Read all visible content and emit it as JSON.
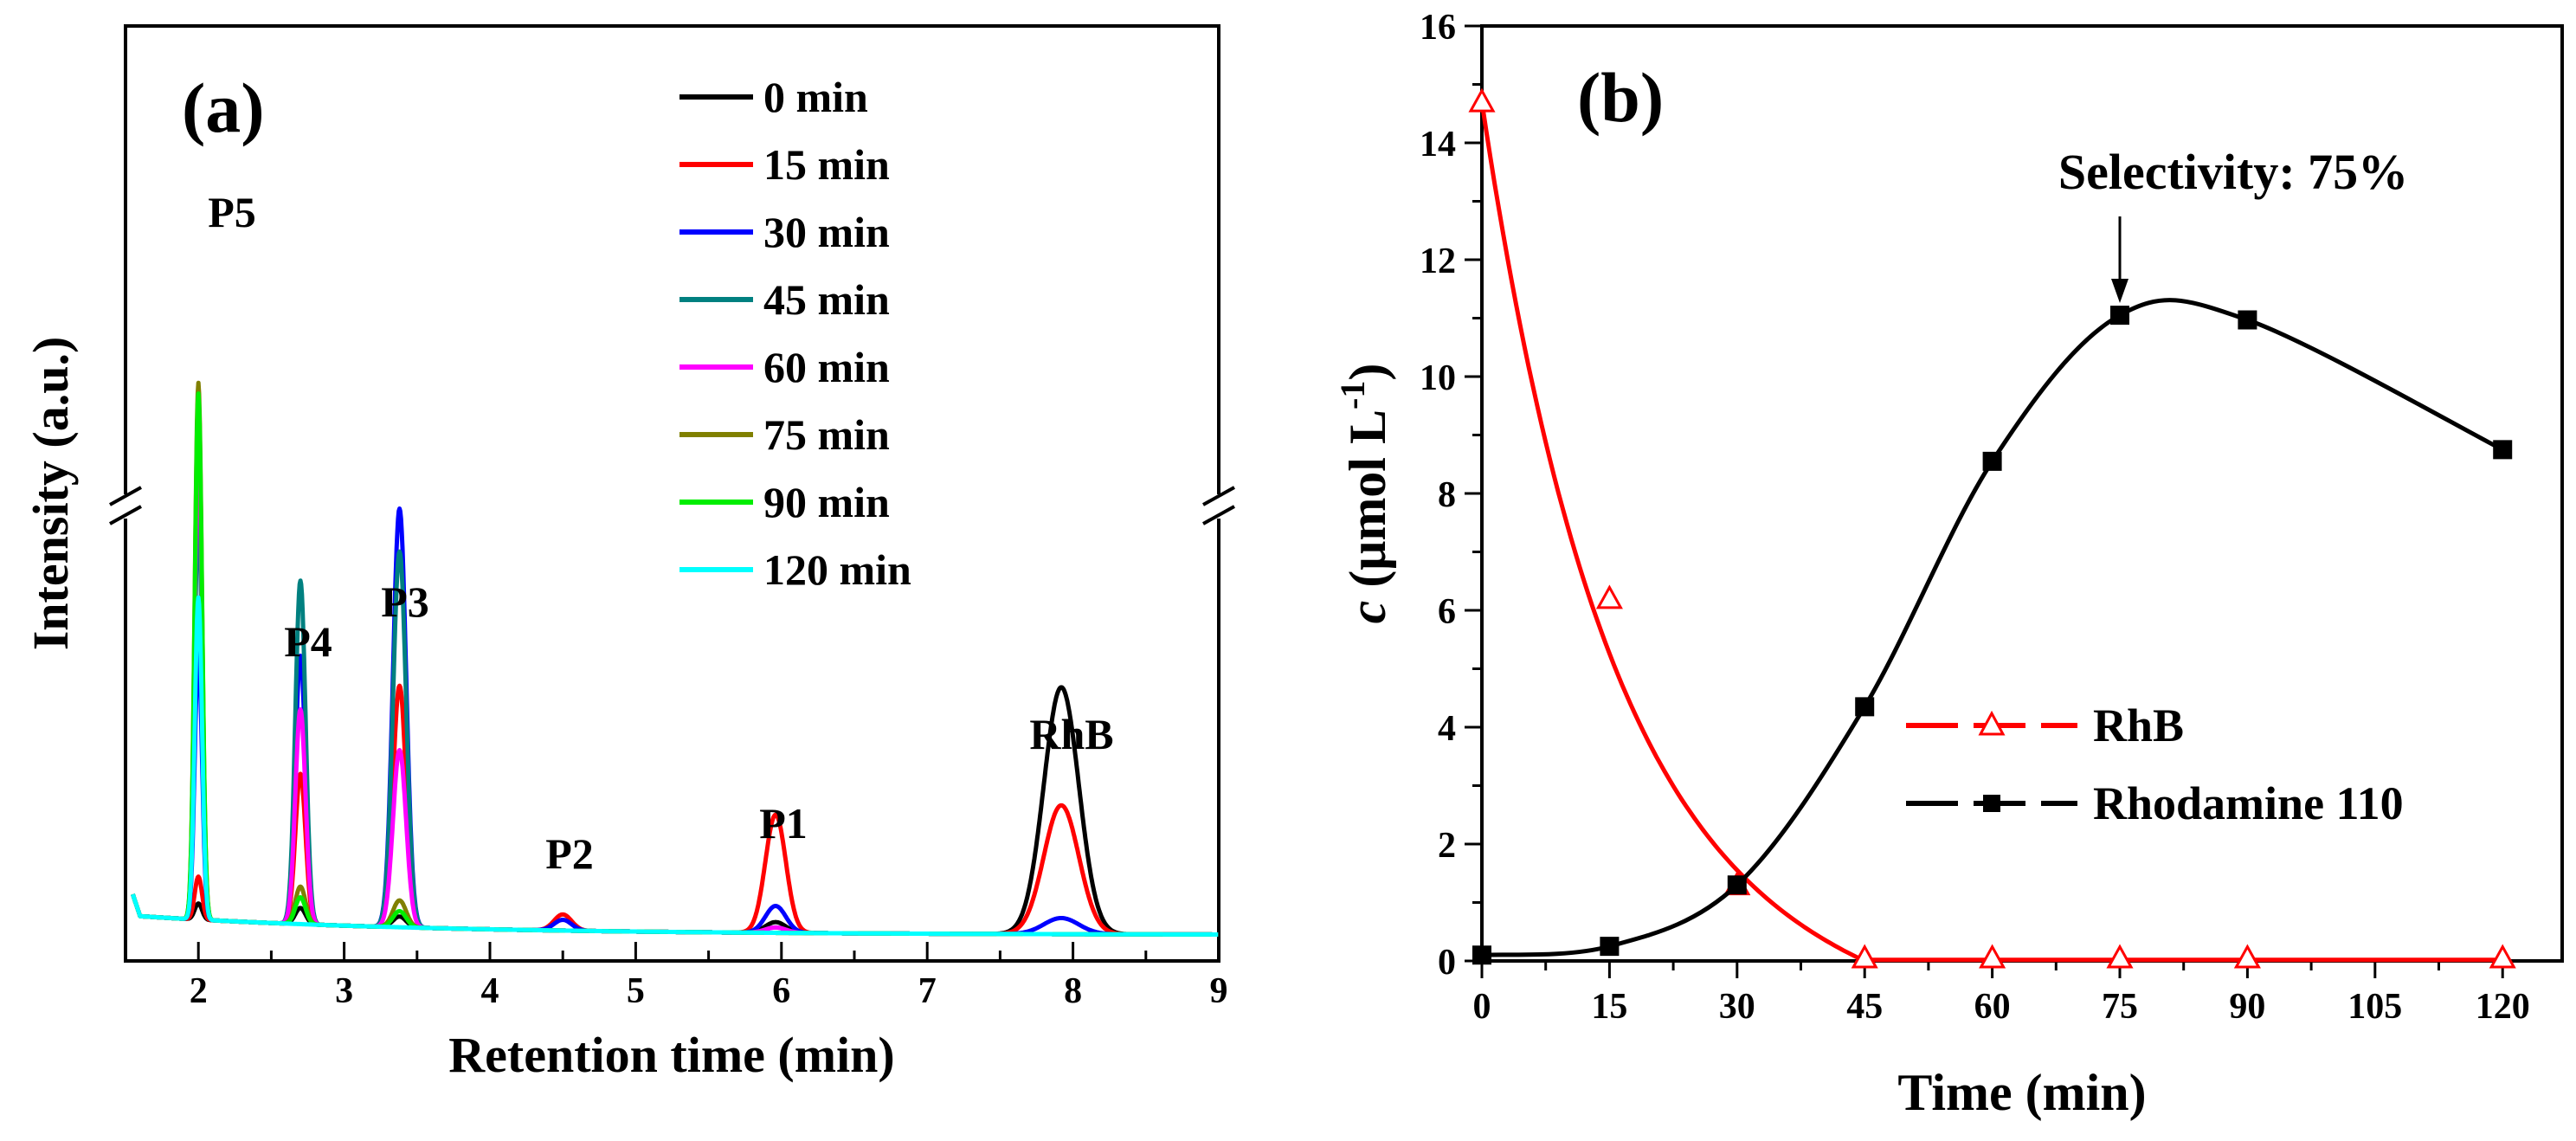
{
  "chart_data": [
    {
      "panel": "(a)",
      "type": "line",
      "xlabel": "Retention time (min)",
      "ylabel": "Intensity (a.u.)",
      "xlim": [
        1.5,
        9
      ],
      "xticks": [
        "2",
        "3",
        "4",
        "5",
        "6",
        "7",
        "8",
        "9"
      ],
      "ylim": [
        0,
        100
      ],
      "axis_break": true,
      "legend_position": "top-center",
      "peak_labels": [
        "P5",
        "P4",
        "P3",
        "P2",
        "P1",
        "RhB"
      ],
      "series": [
        {
          "name": "0 min",
          "color": "#000000",
          "peaks": {
            "P5": 3,
            "P4": 3,
            "P3": 2,
            "P2": 0,
            "P1": 2,
            "RhB": 46
          }
        },
        {
          "name": "15 min",
          "color": "#ff0000",
          "peaks": {
            "P5": 8,
            "P4": 28,
            "P3": 45,
            "P2": 3,
            "P1": 22,
            "RhB": 24
          }
        },
        {
          "name": "30 min",
          "color": "#0000ff",
          "peaks": {
            "P5": 50,
            "P4": 50,
            "P3": 78,
            "P2": 2,
            "P1": 5,
            "RhB": 3
          }
        },
        {
          "name": "45 min",
          "color": "#008080",
          "peaks": {
            "P5": 78,
            "P4": 64,
            "P3": 70,
            "P2": 0,
            "P1": 1,
            "RhB": 0
          }
        },
        {
          "name": "60 min",
          "color": "#ff00ff",
          "peaks": {
            "P5": 90,
            "P4": 40,
            "P3": 33,
            "P2": 0,
            "P1": 1,
            "RhB": 0
          }
        },
        {
          "name": "75 min",
          "color": "#808000",
          "peaks": {
            "P5": 100,
            "P4": 7,
            "P3": 5,
            "P2": 0,
            "P1": 0,
            "RhB": 0
          }
        },
        {
          "name": "90 min",
          "color": "#00ee00",
          "peaks": {
            "P5": 98,
            "P4": 5,
            "P3": 3,
            "P2": 0,
            "P1": 0,
            "RhB": 0
          }
        },
        {
          "name": "120 min",
          "color": "#00ffff",
          "peaks": {
            "P5": 60,
            "P4": 0,
            "P3": 0,
            "P2": 0,
            "P1": 0,
            "RhB": 0
          }
        }
      ]
    },
    {
      "panel": "(b)",
      "type": "line",
      "xlabel": "Time (min)",
      "ylabel_italic": "c",
      "ylabel_rest": " (μmol L",
      "ylabel_exp": "-1",
      "ylabel_close": ")",
      "xlim": [
        0,
        127
      ],
      "ylim": [
        0,
        16
      ],
      "xticks": [
        0,
        15,
        30,
        45,
        60,
        75,
        90,
        105,
        120
      ],
      "yticks": [
        0,
        2,
        4,
        6,
        8,
        10,
        12,
        14,
        16
      ],
      "annotation": "Selectivity: 75%",
      "annotation_x": 75,
      "legend_position": "center-right",
      "series": [
        {
          "name": "RhB",
          "color": "#ff0000",
          "marker": "triangle-open",
          "x": [
            0,
            15,
            30,
            45,
            60,
            75,
            90,
            120
          ],
          "y": [
            14.7,
            6.2,
            1.3,
            0.05,
            0.05,
            0.05,
            0.05,
            0.05
          ]
        },
        {
          "name": "Rhodamine 110",
          "color": "#000000",
          "marker": "square-filled",
          "x": [
            0,
            15,
            30,
            45,
            60,
            75,
            90,
            120
          ],
          "y": [
            0.1,
            0.25,
            1.3,
            4.35,
            8.55,
            11.05,
            10.97,
            8.75
          ]
        }
      ]
    }
  ]
}
